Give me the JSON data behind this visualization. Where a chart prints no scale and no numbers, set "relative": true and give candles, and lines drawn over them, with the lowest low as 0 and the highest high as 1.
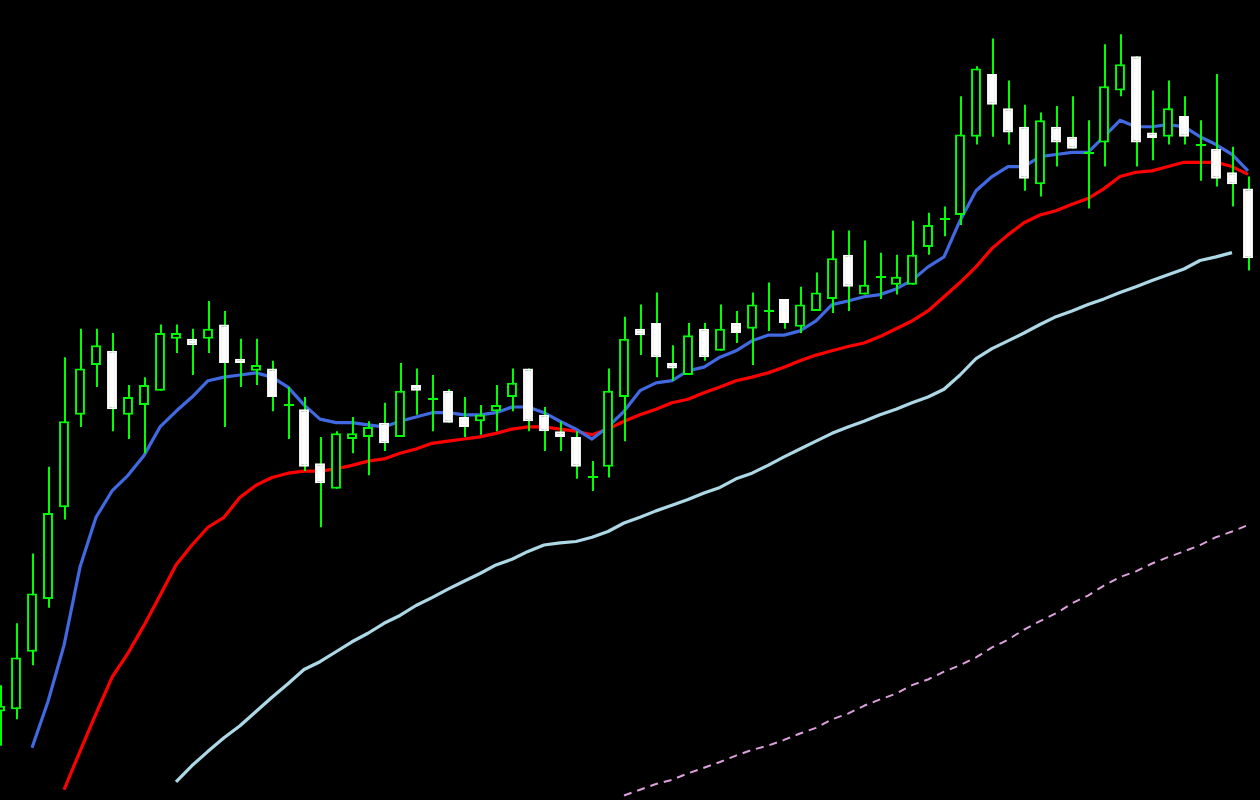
{
  "chart_data": {
    "type": "candlestick",
    "relative": true,
    "tick_labels": false,
    "marker": "none",
    "color": "#00ff00",
    "colors": [
      "#00ff00",
      "#00ff00",
      "#00ff00",
      "#00ff00",
      "#00ff00",
      "#00ff00",
      "#00ff00",
      "#ffffff",
      "#00ff00",
      "#00ff00",
      "#00ff00",
      "#00ff00",
      "#ffffff",
      "#00ff00",
      "#ffffff",
      "#ffffff",
      "#00ff00",
      "#ffffff",
      "#00ff00",
      "#ffffff",
      "#ffffff",
      "#00ff00",
      "#00ff00",
      "#00ff00",
      "#ffffff",
      "#00ff00",
      "#ffffff",
      "#00ff00",
      "#ffffff",
      "#ffffff",
      "#00ff00",
      "#00ff00",
      "#00ff00",
      "#ffffff",
      "#ffffff",
      "#ffffff",
      "#ffffff",
      "#00ff00",
      "#00ff00",
      "#00ff00",
      "#ffffff",
      "#ffffff",
      "#ffffff",
      "#00ff00",
      "#ffffff",
      "#00ff00",
      "#ffffff",
      "#00ff00",
      "#00ff00",
      "#ffffff",
      "#00ff00",
      "#00ff00",
      "#00ff00",
      "#ffffff",
      "#00ff00",
      "#00ff00",
      "#00ff00",
      "#00ff00",
      "#00ff00",
      "#00ff00",
      "#00ff00",
      "#00ff00",
      "#ffffff",
      "#ffffff",
      "#ffffff",
      "#00ff00",
      "#ffffff",
      "#ffffff",
      "#00ff00",
      "#00ff00",
      "#00ff00",
      "#ffffff",
      "#ffffff",
      "#00ff00",
      "#ffffff",
      "#00ff00",
      "#ffffff",
      "#ffffff",
      "#ffffff"
    ],
    "categories": [
      null,
      null,
      null,
      null,
      null,
      null,
      null,
      null,
      null,
      null,
      null,
      null,
      null,
      null,
      null,
      null,
      null,
      null,
      null,
      null,
      null,
      null,
      null,
      null,
      null,
      null,
      null,
      null,
      null,
      null,
      null,
      null,
      null,
      null,
      null,
      null,
      null,
      null,
      null,
      null,
      null,
      null,
      null,
      null,
      null,
      null,
      null,
      null,
      null,
      null,
      null,
      null,
      null,
      null,
      null,
      null,
      null,
      null,
      null,
      null,
      null,
      null,
      null,
      null,
      null,
      null,
      null,
      null,
      null,
      null,
      null,
      null,
      null,
      null,
      null,
      null,
      null,
      null,
      null
    ],
    "ohlc": [
      [
        0.048,
        0.085,
        0,
        0.056
      ],
      [
        0.051,
        0.172,
        0.037,
        0.124
      ],
      [
        0.132,
        0.27,
        0.113,
        0.214
      ],
      [
        0.206,
        0.392,
        0.194,
        0.327
      ],
      [
        0.335,
        0.546,
        0.318,
        0.456
      ],
      [
        0.465,
        0.586,
        0.448,
        0.53
      ],
      [
        0.535,
        0.586,
        0.504,
        0.563
      ],
      [
        0.555,
        0.58,
        0.442,
        0.473
      ],
      [
        0.465,
        0.507,
        0.431,
        0.49
      ],
      [
        0.479,
        0.518,
        0.411,
        0.507
      ],
      [
        0.499,
        0.592,
        0.499,
        0.58
      ],
      [
        0.572,
        0.592,
        0.552,
        0.58
      ],
      [
        0.572,
        0.586,
        0.521,
        0.563
      ],
      [
        0.572,
        0.625,
        0.552,
        0.586
      ],
      [
        0.592,
        0.611,
        0.448,
        0.538
      ],
      [
        0.544,
        0.572,
        0.504,
        0.538
      ],
      [
        0.527,
        0.572,
        0.507,
        0.535
      ],
      [
        0.53,
        0.541,
        0.47,
        0.49
      ],
      [
        0.479,
        0.504,
        0.431,
        0.479
      ],
      [
        0.473,
        0.49,
        0.386,
        0.392
      ],
      [
        0.397,
        0.434,
        0.307,
        0.369
      ],
      [
        0.361,
        0.442,
        0.361,
        0.439
      ],
      [
        0.431,
        0.462,
        0.411,
        0.439
      ],
      [
        0.434,
        0.456,
        0.38,
        0.448
      ],
      [
        0.454,
        0.482,
        0.414,
        0.425
      ],
      [
        0.434,
        0.538,
        0.434,
        0.499
      ],
      [
        0.507,
        0.53,
        0.465,
        0.499
      ],
      [
        0.49,
        0.521,
        0.442,
        0.49
      ],
      [
        0.499,
        0.501,
        0.454,
        0.454
      ],
      [
        0.462,
        0.49,
        0.434,
        0.448
      ],
      [
        0.456,
        0.479,
        0.437,
        0.465
      ],
      [
        0.47,
        0.507,
        0.442,
        0.479
      ],
      [
        0.49,
        0.53,
        0.47,
        0.51
      ],
      [
        0.53,
        0.53,
        0.442,
        0.456
      ],
      [
        0.465,
        0.476,
        0.414,
        0.442
      ],
      [
        0.442,
        0.456,
        0.414,
        0.434
      ],
      [
        0.434,
        0.442,
        0.375,
        0.392
      ],
      [
        0.38,
        0.4,
        0.358,
        0.38
      ],
      [
        0.392,
        0.53,
        0.377,
        0.499
      ],
      [
        0.49,
        0.603,
        0.428,
        0.572
      ],
      [
        0.586,
        0.62,
        0.549,
        0.577
      ],
      [
        0.594,
        0.637,
        0.518,
        0.546
      ],
      [
        0.538,
        0.563,
        0.513,
        0.53
      ],
      [
        0.521,
        0.594,
        0.521,
        0.577
      ],
      [
        0.586,
        0.594,
        0.541,
        0.546
      ],
      [
        0.555,
        0.62,
        0.555,
        0.586
      ],
      [
        0.594,
        0.611,
        0.566,
        0.58
      ],
      [
        0.586,
        0.637,
        0.535,
        0.62
      ],
      [
        0.611,
        0.651,
        0.583,
        0.611
      ],
      [
        0.628,
        0.628,
        0.586,
        0.594
      ],
      [
        0.589,
        0.645,
        0.58,
        0.62
      ],
      [
        0.611,
        0.665,
        0.611,
        0.637
      ],
      [
        0.628,
        0.724,
        0.608,
        0.685
      ],
      [
        0.69,
        0.724,
        0.611,
        0.645
      ],
      [
        0.634,
        0.71,
        0.634,
        0.648
      ],
      [
        0.659,
        0.693,
        0.628,
        0.659
      ],
      [
        0.648,
        0.69,
        0.634,
        0.659
      ],
      [
        0.648,
        0.738,
        0.648,
        0.69
      ],
      [
        0.701,
        0.749,
        0.69,
        0.732
      ],
      [
        0.741,
        0.758,
        0.716,
        0.741
      ],
      [
        0.746,
        0.913,
        0.732,
        0.859
      ],
      [
        0.856,
        0.955,
        0.845,
        0.952
      ],
      [
        0.944,
        0.994,
        0.856,
        0.901
      ],
      [
        0.896,
        0.935,
        0.845,
        0.862
      ],
      [
        0.87,
        0.901,
        0.78,
        0.797
      ],
      [
        0.789,
        0.89,
        0.772,
        0.879
      ],
      [
        0.87,
        0.899,
        0.814,
        0.848
      ],
      [
        0.856,
        0.913,
        0.839,
        0.839
      ],
      [
        0.834,
        0.879,
        0.755,
        0.834
      ],
      [
        0.848,
        0.986,
        0.814,
        0.927
      ],
      [
        0.921,
        1,
        0.913,
        0.958
      ],
      [
        0.969,
        0.969,
        0.814,
        0.848
      ],
      [
        0.862,
        0.921,
        0.823,
        0.854
      ],
      [
        0.856,
        0.935,
        0.845,
        0.896
      ],
      [
        0.885,
        0.913,
        0.845,
        0.856
      ],
      [
        0.845,
        0.879,
        0.794,
        0.845
      ],
      [
        0.839,
        0.944,
        0.786,
        0.797
      ],
      [
        0.806,
        0.842,
        0.758,
        0.789
      ],
      [
        0.783,
        0.8,
        0.668,
        0.685
      ]
    ],
    "series": [
      {
        "type": "line",
        "color": "#4169e1",
        "values": [
          null,
          null,
          -0.003,
          0.062,
          0.141,
          0.251,
          0.321,
          0.358,
          0.38,
          0.408,
          0.448,
          0.47,
          0.49,
          0.513,
          0.518,
          0.521,
          0.524,
          0.518,
          0.504,
          0.479,
          0.459,
          0.454,
          0.454,
          0.451,
          0.448,
          0.456,
          0.462,
          0.468,
          0.468,
          0.465,
          0.465,
          0.468,
          0.476,
          0.476,
          0.468,
          0.456,
          0.445,
          0.431,
          0.448,
          0.47,
          0.499,
          0.51,
          0.513,
          0.527,
          0.532,
          0.546,
          0.555,
          0.569,
          0.577,
          0.577,
          0.583,
          0.597,
          0.62,
          0.625,
          0.631,
          0.634,
          0.642,
          0.654,
          0.673,
          0.687,
          0.738,
          0.78,
          0.8,
          0.814,
          0.814,
          0.828,
          0.831,
          0.834,
          0.834,
          0.856,
          0.879,
          0.87,
          0.87,
          0.873,
          0.87,
          0.856,
          0.845,
          0.831,
          0.808
        ]
      },
      {
        "type": "line",
        "color": "#ff0000",
        "values": [
          null,
          null,
          null,
          null,
          -0.062,
          -0.008,
          0.045,
          0.096,
          0.13,
          0.169,
          0.211,
          0.254,
          0.282,
          0.307,
          0.321,
          0.349,
          0.366,
          0.377,
          0.383,
          0.386,
          0.386,
          0.389,
          0.394,
          0.4,
          0.403,
          0.411,
          0.417,
          0.425,
          0.428,
          0.431,
          0.434,
          0.439,
          0.445,
          0.448,
          0.448,
          0.445,
          0.442,
          0.437,
          0.445,
          0.456,
          0.465,
          0.473,
          0.482,
          0.487,
          0.496,
          0.504,
          0.513,
          0.518,
          0.524,
          0.532,
          0.541,
          0.549,
          0.555,
          0.561,
          0.566,
          0.575,
          0.586,
          0.597,
          0.611,
          0.631,
          0.651,
          0.673,
          0.699,
          0.718,
          0.735,
          0.746,
          0.752,
          0.761,
          0.769,
          0.783,
          0.8,
          0.806,
          0.808,
          0.814,
          0.82,
          0.82,
          0.82,
          0.814,
          0.803
        ]
      },
      {
        "type": "line",
        "color": "#add8e6",
        "values": [
          null,
          null,
          null,
          null,
          null,
          null,
          null,
          null,
          null,
          null,
          null,
          -0.051,
          -0.028,
          -0.008,
          0.011,
          0.028,
          0.048,
          0.068,
          0.087,
          0.107,
          0.118,
          0.132,
          0.146,
          0.158,
          0.172,
          0.183,
          0.197,
          0.208,
          0.22,
          0.231,
          0.242,
          0.254,
          0.262,
          0.273,
          0.282,
          0.285,
          0.287,
          0.293,
          0.301,
          0.313,
          0.321,
          0.33,
          0.338,
          0.346,
          0.355,
          0.363,
          0.375,
          0.383,
          0.394,
          0.406,
          0.417,
          0.428,
          0.439,
          0.448,
          0.456,
          0.465,
          0.473,
          0.482,
          0.49,
          0.501,
          0.521,
          0.544,
          0.558,
          0.569,
          0.58,
          0.592,
          0.603,
          0.611,
          0.62,
          0.628,
          0.637,
          0.645,
          0.654,
          0.662,
          0.67,
          0.682,
          0.687,
          0.693,
          null
        ]
      },
      {
        "type": "line",
        "color": "#dda0dd",
        "line_style": "dashed",
        "values": [
          null,
          null,
          null,
          null,
          null,
          null,
          null,
          null,
          null,
          null,
          null,
          null,
          null,
          null,
          null,
          null,
          null,
          null,
          null,
          null,
          null,
          null,
          null,
          null,
          null,
          null,
          null,
          null,
          null,
          null,
          null,
          null,
          null,
          null,
          null,
          null,
          null,
          null,
          null,
          -0.07,
          -0.062,
          -0.054,
          -0.048,
          -0.039,
          -0.031,
          -0.023,
          -0.014,
          -0.006,
          0,
          0.008,
          0.017,
          0.025,
          0.037,
          0.045,
          0.056,
          0.065,
          0.073,
          0.085,
          0.093,
          0.104,
          0.113,
          0.124,
          0.138,
          0.149,
          0.163,
          0.175,
          0.186,
          0.2,
          0.211,
          0.225,
          0.237,
          0.245,
          0.256,
          0.265,
          0.273,
          0.282,
          0.293,
          0.301,
          0.31
        ]
      }
    ]
  }
}
